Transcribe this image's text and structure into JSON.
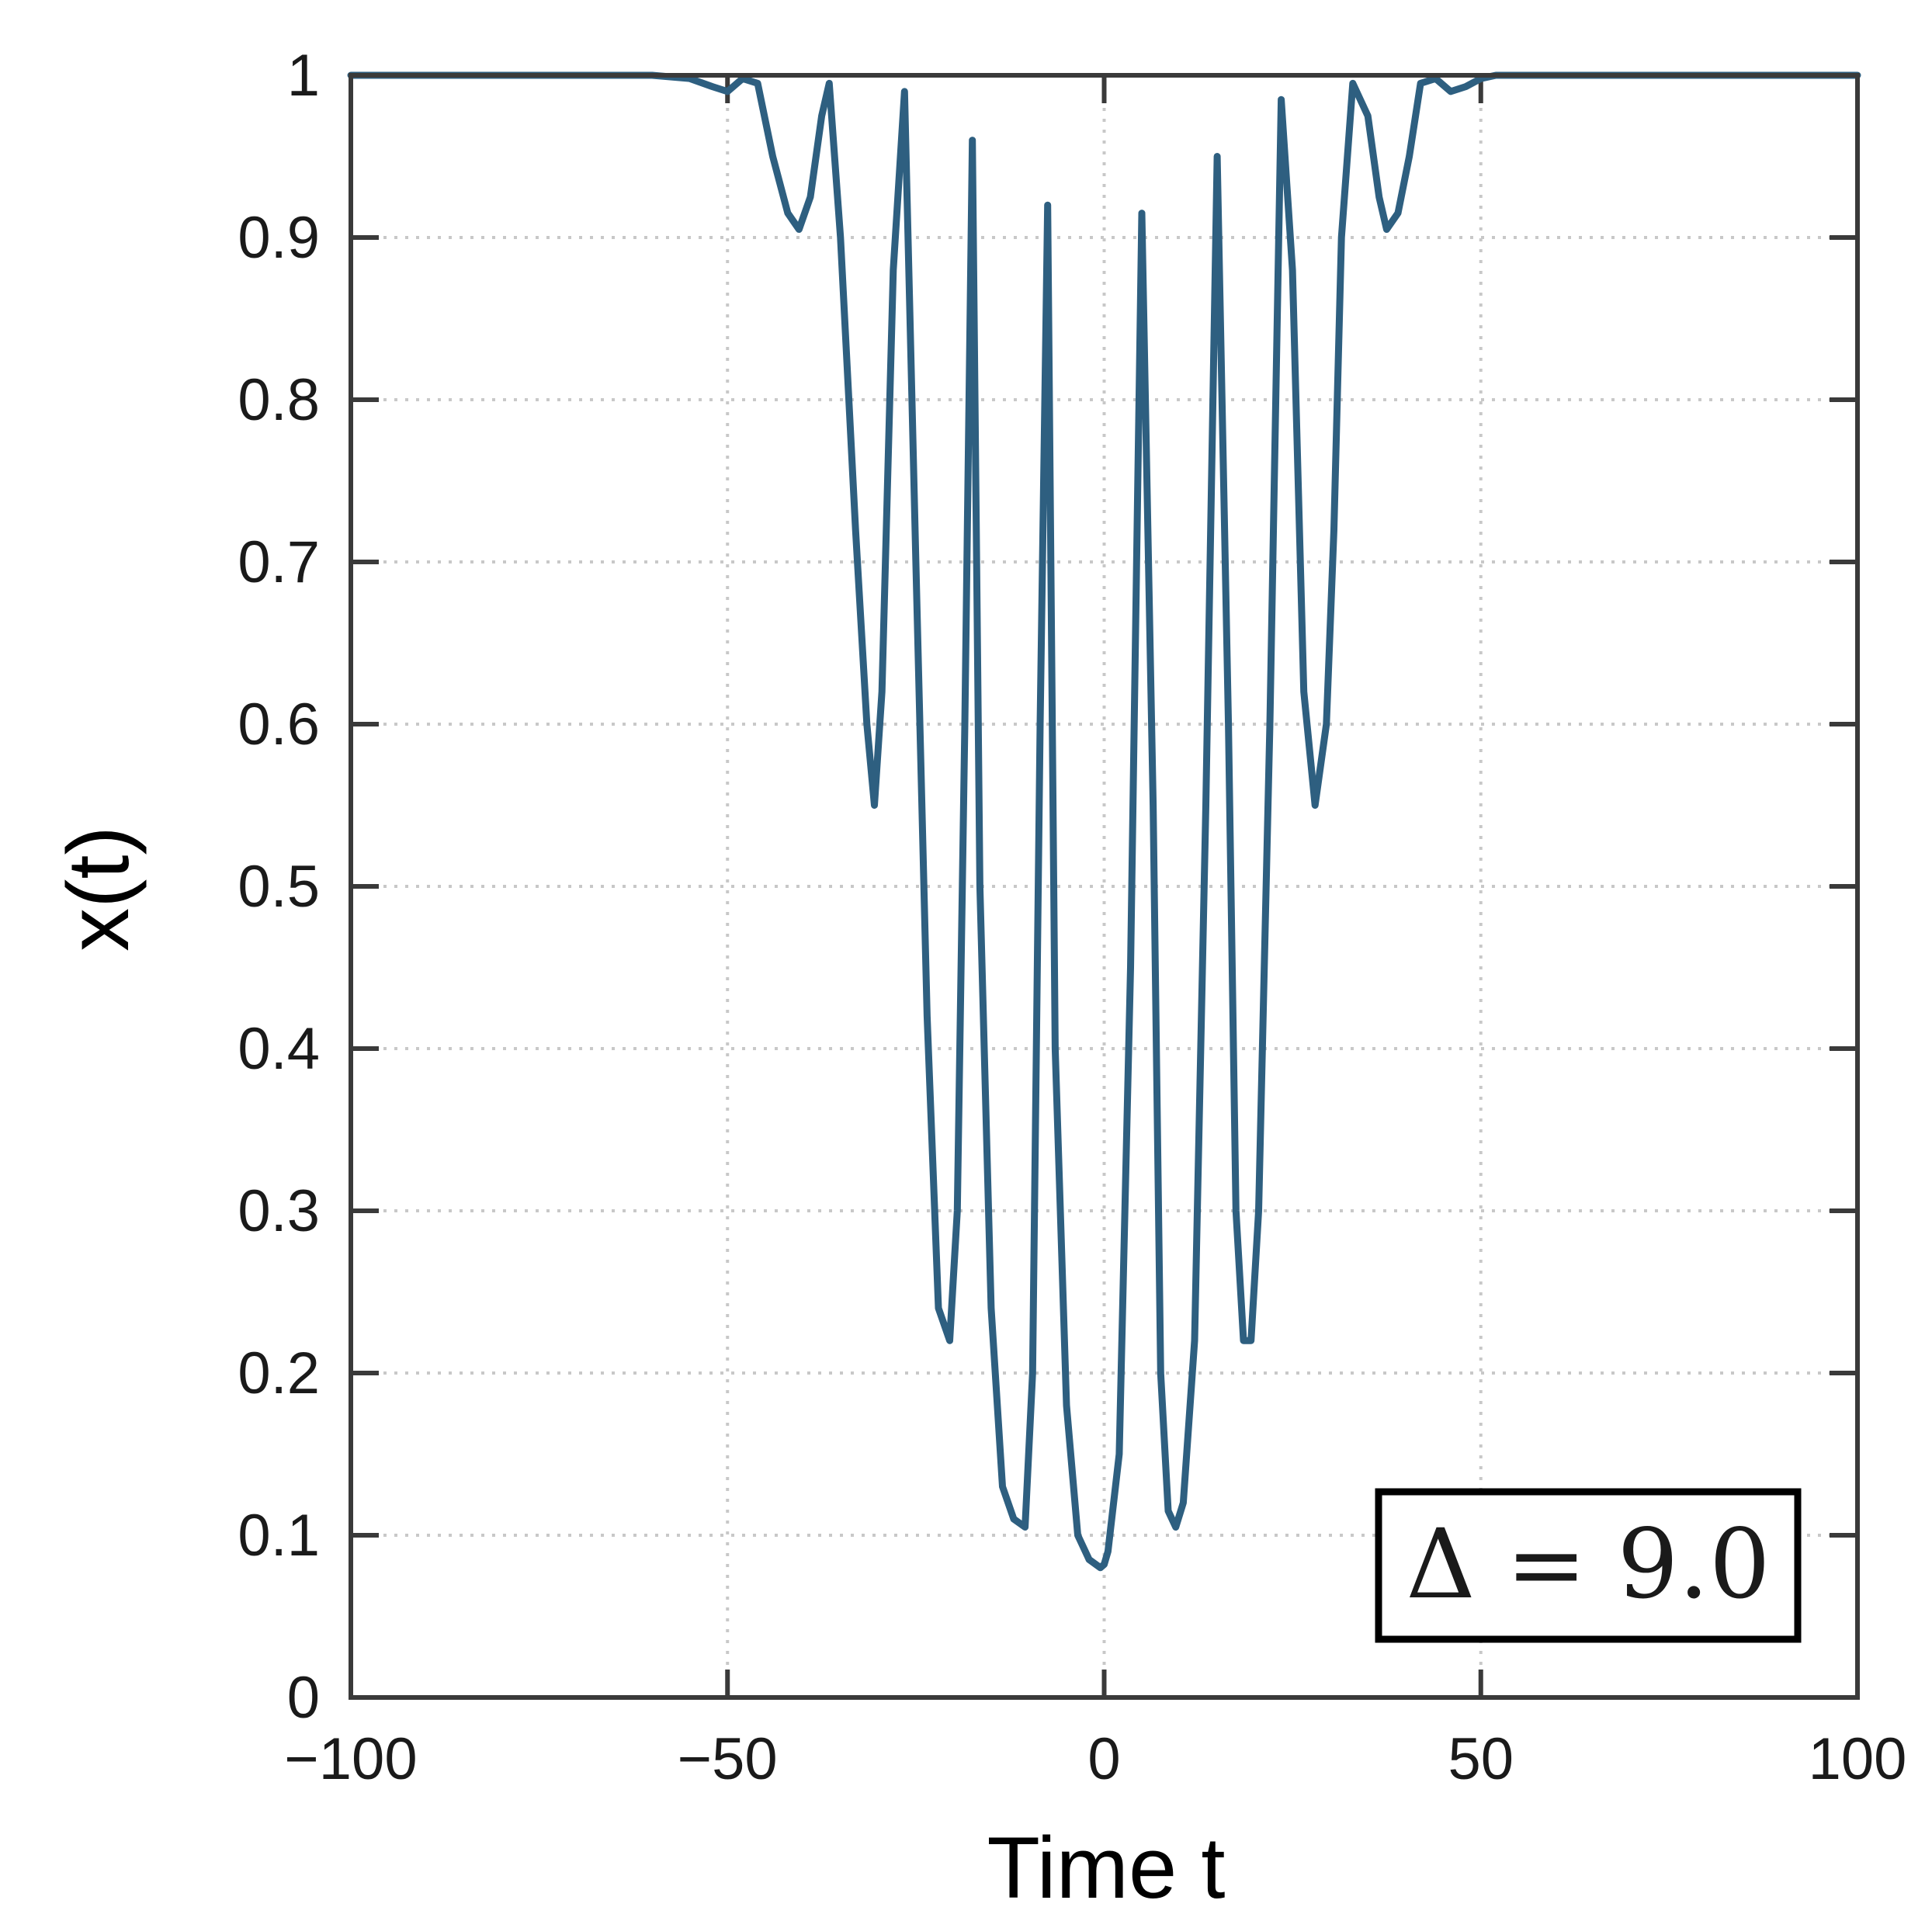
{
  "chart_data": {
    "type": "line",
    "title": "",
    "xlabel": "Time t",
    "ylabel": "x(t)",
    "xlim": [
      -100,
      100
    ],
    "ylim": [
      0,
      1
    ],
    "x_ticks": [
      -100,
      -50,
      0,
      50,
      100
    ],
    "x_tick_labels": [
      "−100",
      "−50",
      "0",
      "50",
      "100"
    ],
    "y_ticks": [
      0,
      0.1,
      0.2,
      0.3,
      0.4,
      0.5,
      0.6,
      0.7,
      0.8,
      0.9,
      1
    ],
    "y_tick_labels": [
      "0",
      "0.1",
      "0.2",
      "0.3",
      "0.4",
      "0.5",
      "0.6",
      "0.7",
      "0.8",
      "0.9",
      "1"
    ],
    "grid": true,
    "annotation": "Δ = 9.0",
    "annotation_position": "bottom-right",
    "colors": {
      "line": "#2e5f80",
      "axis": "#3a3a3a",
      "grid": "#c8c8c8"
    },
    "series": [
      {
        "x": [
          -100,
          -60,
          -55,
          -52,
          -50,
          -48,
          -46,
          -44,
          -42,
          -40.5,
          -39,
          -37.5,
          -36.5,
          -35,
          -33,
          -31.5,
          -30.5,
          -29.5,
          -28,
          -26.5,
          -25,
          -23.5,
          -22,
          -20.5,
          -19.5,
          -18.5,
          -17.5,
          -16.5,
          -15,
          -13.5,
          -12,
          -10.5,
          -9.5,
          -8.5,
          -7.5,
          -6.5,
          -5,
          -3.5,
          -2,
          -0.5,
          0,
          0.5,
          2,
          3.5,
          5,
          6.5,
          7.5,
          8.5,
          9.5,
          10.5,
          12,
          13.5,
          15,
          16.5,
          17.5,
          18.5,
          19.5,
          20.5,
          22,
          23.5,
          25,
          26.5,
          28,
          29.5,
          30.5,
          31.5,
          33,
          35,
          36.5,
          37.5,
          39,
          40.5,
          42,
          44,
          46,
          48,
          50,
          52,
          55,
          60,
          100
        ],
        "y": [
          1,
          1,
          0.998,
          0.993,
          0.99,
          0.998,
          0.995,
          0.95,
          0.915,
          0.905,
          0.925,
          0.975,
          0.995,
          0.9,
          0.72,
          0.6,
          0.55,
          0.62,
          0.88,
          0.99,
          0.7,
          0.42,
          0.24,
          0.22,
          0.3,
          0.6,
          0.96,
          0.5,
          0.24,
          0.13,
          0.11,
          0.105,
          0.2,
          0.6,
          0.92,
          0.4,
          0.18,
          0.1,
          0.085,
          0.08,
          0.082,
          0.09,
          0.15,
          0.45,
          0.915,
          0.55,
          0.2,
          0.115,
          0.105,
          0.12,
          0.22,
          0.55,
          0.95,
          0.6,
          0.3,
          0.22,
          0.22,
          0.3,
          0.6,
          0.985,
          0.88,
          0.62,
          0.55,
          0.6,
          0.72,
          0.9,
          0.995,
          0.975,
          0.925,
          0.905,
          0.915,
          0.95,
          0.995,
          0.998,
          0.99,
          0.993,
          0.998,
          1,
          1,
          1,
          1
        ]
      }
    ]
  }
}
